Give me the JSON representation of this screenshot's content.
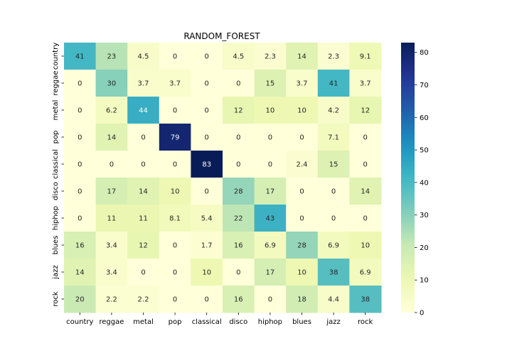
{
  "chart_data": {
    "type": "heatmap",
    "title": "RANDOM_FOREST",
    "x_labels": [
      "country",
      "reggae",
      "metal",
      "pop",
      "classical",
      "disco",
      "hiphop",
      "blues",
      "jazz",
      "rock"
    ],
    "y_labels": [
      "country",
      "reggae",
      "metal",
      "pop",
      "classical",
      "disco",
      "hiphop",
      "blues",
      "jazz",
      "rock"
    ],
    "values": [
      [
        41,
        23,
        4.5,
        0,
        0,
        4.5,
        2.3,
        14,
        2.3,
        9.1
      ],
      [
        0,
        30,
        3.7,
        3.7,
        0,
        0,
        15,
        3.7,
        41,
        3.7
      ],
      [
        0,
        6.2,
        44,
        0,
        0,
        12,
        10,
        10,
        4.2,
        12
      ],
      [
        0,
        14,
        0,
        79,
        0,
        0,
        0,
        0,
        7.1,
        0
      ],
      [
        0,
        0,
        0,
        0,
        83,
        0,
        0,
        2.4,
        15,
        0
      ],
      [
        0,
        17,
        14,
        10,
        0,
        28,
        17,
        0,
        0,
        14
      ],
      [
        0,
        11,
        11,
        8.1,
        5.4,
        22,
        43,
        0,
        0,
        0
      ],
      [
        16,
        3.4,
        12,
        0,
        1.7,
        16,
        6.9,
        28,
        6.9,
        10
      ],
      [
        14,
        3.4,
        0,
        0,
        10,
        0,
        17,
        10,
        38,
        6.9
      ],
      [
        20,
        2.2,
        2.2,
        0,
        0,
        16,
        0,
        18,
        4.4,
        38
      ]
    ],
    "colormap": "YlGnBu",
    "vmin": 0,
    "vmax": 83,
    "colorbar_ticks": [
      0,
      10,
      20,
      30,
      40,
      50,
      60,
      70,
      80
    ],
    "colorbar_tick_labels": [
      "0",
      "10",
      "20",
      "30",
      "40",
      "50",
      "60",
      "70",
      "80"
    ]
  }
}
